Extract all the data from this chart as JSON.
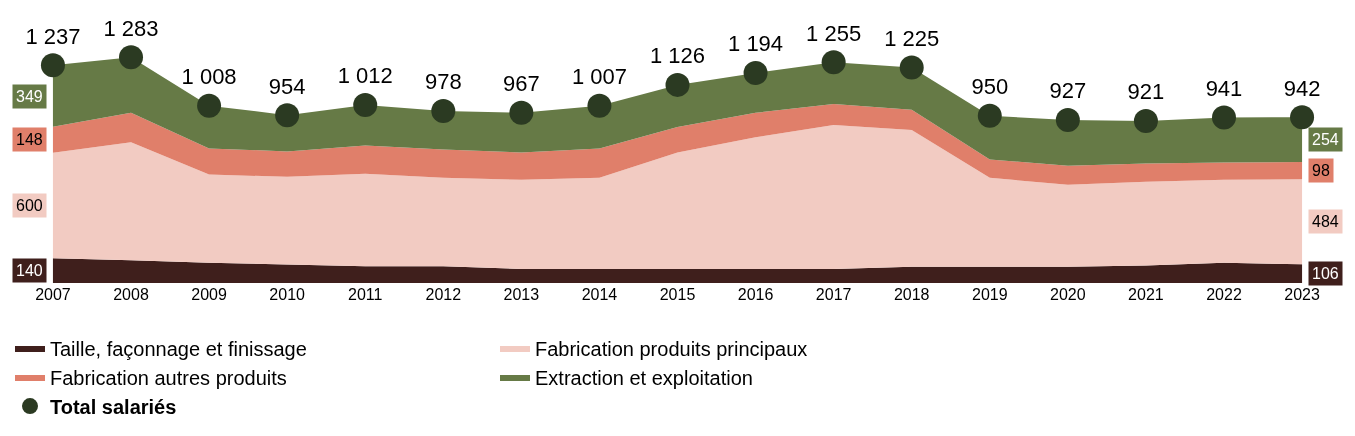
{
  "chart_data": {
    "type": "area",
    "stacked": true,
    "legend": "bottom",
    "categories": [
      "2007",
      "2008",
      "2009",
      "2010",
      "2011",
      "2012",
      "2013",
      "2014",
      "2015",
      "2016",
      "2017",
      "2018",
      "2019",
      "2020",
      "2021",
      "2022",
      "2023"
    ],
    "series": [
      {
        "name": "Taille, façonnage et finissage",
        "color": "#3f1f1c",
        "values": [
          140,
          130,
          115,
          105,
          95,
          95,
          80,
          80,
          80,
          80,
          80,
          92,
          92,
          92,
          100,
          115,
          106
        ],
        "value_labels": [
          "140",
          null,
          null,
          null,
          null,
          null,
          null,
          null,
          null,
          null,
          null,
          null,
          null,
          null,
          null,
          null,
          "106"
        ]
      },
      {
        "name": "Fabrication produits principaux",
        "color": "#f2cbc2",
        "values": [
          600,
          670,
          501,
          499,
          526,
          503,
          507,
          518,
          662,
          748,
          818,
          777,
          506,
          466,
          475,
          472,
          484
        ],
        "value_labels": [
          "600",
          null,
          null,
          null,
          null,
          null,
          null,
          null,
          null,
          null,
          null,
          null,
          null,
          null,
          null,
          null,
          "484"
        ]
      },
      {
        "name": "Fabrication autres produits",
        "color": "#e07f6a",
        "values": [
          148,
          167,
          149,
          144,
          161,
          161,
          155,
          167,
          144,
          139,
          120,
          115,
          104,
          109,
          104,
          98,
          98
        ],
        "value_labels": [
          "148",
          null,
          null,
          null,
          null,
          null,
          null,
          null,
          null,
          null,
          null,
          null,
          null,
          null,
          null,
          null,
          "98"
        ]
      },
      {
        "name": "Extraction et exploitation",
        "color": "#667a46",
        "values": [
          349,
          316,
          243,
          206,
          230,
          219,
          225,
          242,
          240,
          227,
          237,
          241,
          248,
          260,
          242,
          256,
          254
        ],
        "value_labels": [
          "349",
          null,
          null,
          null,
          null,
          null,
          null,
          null,
          null,
          null,
          null,
          null,
          null,
          null,
          null,
          null,
          "254"
        ]
      },
      {
        "name": "Total salariés",
        "type": "scatter",
        "marker": "circle",
        "color": "#2b3a22",
        "values": [
          1237,
          1283,
          1008,
          954,
          1012,
          978,
          967,
          1007,
          1126,
          1194,
          1255,
          1225,
          950,
          927,
          921,
          941,
          942
        ],
        "value_labels": [
          "1 237",
          "1 283",
          "1 008",
          "954",
          "1 012",
          "978",
          "967",
          "1 007",
          "1 126",
          "1 194",
          "1 255",
          "1 225",
          "950",
          "927",
          "921",
          "941",
          "942"
        ]
      }
    ]
  }
}
